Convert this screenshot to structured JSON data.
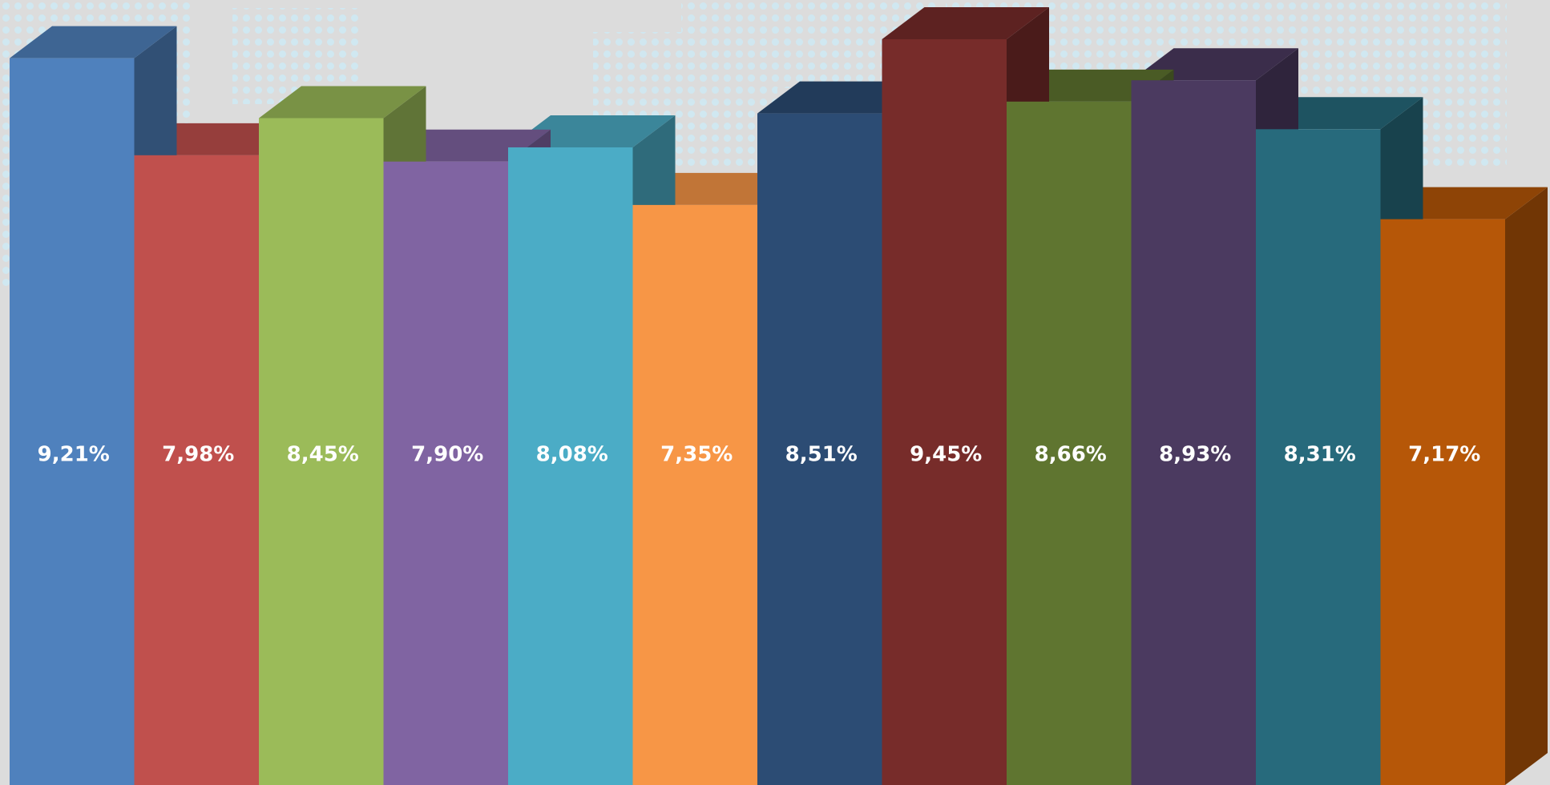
{
  "chart_data": {
    "type": "bar3d",
    "categories": [
      null,
      null,
      null,
      null,
      null,
      null,
      null,
      null,
      null,
      null,
      null,
      null
    ],
    "values": [
      9.21,
      7.98,
      8.45,
      7.9,
      8.08,
      7.35,
      8.51,
      9.45,
      8.66,
      8.93,
      8.31,
      7.17
    ],
    "value_labels": [
      "9,21%",
      "7,98%",
      "8,45%",
      "7,90%",
      "8,08%",
      "7,35%",
      "8,51%",
      "9,45%",
      "8,66%",
      "8,93%",
      "8,31%",
      "7,17%"
    ],
    "colors": [
      "#4f81bd",
      "#c0504d",
      "#9bbb59",
      "#8064a2",
      "#4bacc6",
      "#f79646",
      "#2c4c74",
      "#772c2a",
      "#5f7530",
      "#4b3a60",
      "#276a7c",
      "#b65708"
    ]
  }
}
